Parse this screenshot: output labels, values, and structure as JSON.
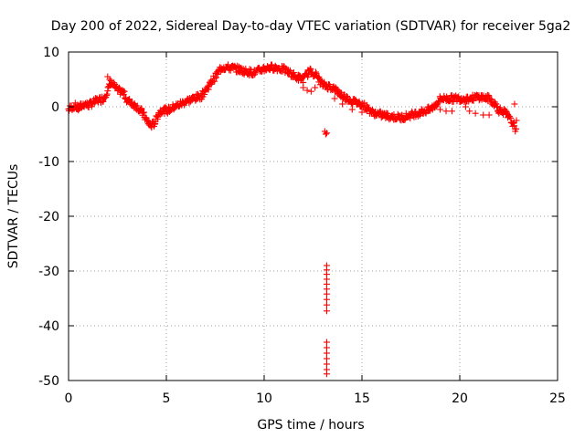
{
  "chart_data": {
    "type": "scatter",
    "title": "Day 200 of 2022, Sidereal Day-to-day VTEC variation (SDTVAR) for receiver 5ga2",
    "xlabel": "GPS time / hours",
    "ylabel": "SDTVAR / TECUs",
    "xlim": [
      0,
      25
    ],
    "ylim": [
      -50,
      10
    ],
    "xticks": [
      0,
      5,
      10,
      15,
      20,
      25
    ],
    "yticks": [
      10,
      0,
      -10,
      -20,
      -30,
      -40,
      -50
    ],
    "xtick_labels": [
      "0",
      "5",
      "10",
      "15",
      "20",
      "25"
    ],
    "ytick_labels": [
      "10",
      "0",
      "-10",
      "-20",
      "-30",
      "-40",
      "-50"
    ],
    "grid": true,
    "marker": "plus",
    "color": "#ff0000",
    "series": [
      {
        "name": "SDTVAR",
        "trend": [
          [
            0.0,
            -0.5
          ],
          [
            0.3,
            0.2
          ],
          [
            0.5,
            -0.3
          ],
          [
            0.8,
            0.5
          ],
          [
            1.0,
            0.3
          ],
          [
            1.3,
            0.8
          ],
          [
            1.5,
            1.2
          ],
          [
            1.8,
            1.5
          ],
          [
            2.0,
            3.0
          ],
          [
            2.2,
            4.5
          ],
          [
            2.5,
            3.0
          ],
          [
            2.8,
            2.6
          ],
          [
            3.0,
            1.2
          ],
          [
            3.3,
            0.5
          ],
          [
            3.5,
            0.0
          ],
          [
            3.8,
            -1.2
          ],
          [
            4.0,
            -2.5
          ],
          [
            4.2,
            -3.5
          ],
          [
            4.4,
            -3.0
          ],
          [
            4.6,
            -1.2
          ],
          [
            4.8,
            -0.5
          ],
          [
            5.0,
            -0.8
          ],
          [
            5.3,
            -0.2
          ],
          [
            5.6,
            0.3
          ],
          [
            6.0,
            1.0
          ],
          [
            6.4,
            1.5
          ],
          [
            6.8,
            2.0
          ],
          [
            7.0,
            3.0
          ],
          [
            7.3,
            4.5
          ],
          [
            7.6,
            6.0
          ],
          [
            7.8,
            7.2
          ],
          [
            8.0,
            7.2
          ],
          [
            8.5,
            7.0
          ],
          [
            9.0,
            6.5
          ],
          [
            9.5,
            6.2
          ],
          [
            10.0,
            7.0
          ],
          [
            10.5,
            7.2
          ],
          [
            11.0,
            6.8
          ],
          [
            11.3,
            6.2
          ],
          [
            11.6,
            5.5
          ],
          [
            12.0,
            5.0
          ],
          [
            12.3,
            6.5
          ],
          [
            12.6,
            6.0
          ],
          [
            13.0,
            4.0
          ],
          [
            13.5,
            3.5
          ],
          [
            14.0,
            2.0
          ],
          [
            14.5,
            1.0
          ],
          [
            15.0,
            0.5
          ],
          [
            15.5,
            -1.0
          ],
          [
            16.0,
            -1.5
          ],
          [
            16.5,
            -1.8
          ],
          [
            17.0,
            -2.0
          ],
          [
            17.5,
            -1.5
          ],
          [
            18.0,
            -1.0
          ],
          [
            18.5,
            -0.5
          ],
          [
            18.8,
            0.5
          ],
          [
            19.0,
            1.5
          ],
          [
            19.5,
            1.5
          ],
          [
            20.0,
            1.5
          ],
          [
            20.5,
            1.5
          ],
          [
            21.0,
            1.8
          ],
          [
            21.5,
            1.5
          ],
          [
            21.8,
            0.5
          ],
          [
            22.0,
            -0.5
          ],
          [
            22.3,
            -1.0
          ],
          [
            22.5,
            -2.0
          ],
          [
            22.8,
            -3.5
          ],
          [
            22.9,
            -5.0
          ]
        ],
        "scatter_band": 1.2,
        "extra_points": [
          [
            12.0,
            3.5
          ],
          [
            12.2,
            3.0
          ],
          [
            12.4,
            2.8
          ],
          [
            12.6,
            3.5
          ],
          [
            13.0,
            3.8
          ],
          [
            13.6,
            1.5
          ],
          [
            14.0,
            0.5
          ],
          [
            14.5,
            -0.5
          ],
          [
            15.0,
            -1.0
          ],
          [
            19.0,
            -0.5
          ],
          [
            19.3,
            -0.8
          ],
          [
            19.6,
            -0.8
          ],
          [
            20.3,
            0.0
          ],
          [
            20.5,
            -0.8
          ],
          [
            20.8,
            -1.2
          ],
          [
            21.2,
            -1.5
          ],
          [
            21.5,
            -1.5
          ],
          [
            22.0,
            -1.2
          ],
          [
            22.8,
            0.5
          ],
          [
            22.9,
            -2.5
          ],
          [
            2.0,
            5.5
          ],
          [
            2.1,
            5.0
          ],
          [
            13.1,
            -4.5
          ],
          [
            13.15,
            -5.0
          ],
          [
            13.2,
            -4.8
          ],
          [
            13.2,
            -29.0
          ],
          [
            13.2,
            -29.8
          ],
          [
            13.2,
            -30.6
          ],
          [
            13.2,
            -31.5
          ],
          [
            13.2,
            -32.4
          ],
          [
            13.2,
            -33.3
          ],
          [
            13.2,
            -34.2
          ],
          [
            13.2,
            -35.2
          ],
          [
            13.2,
            -36.2
          ],
          [
            13.2,
            -37.3
          ],
          [
            13.2,
            -43.0
          ],
          [
            13.2,
            -44.0
          ],
          [
            13.2,
            -45.0
          ],
          [
            13.2,
            -46.0
          ],
          [
            13.2,
            -47.0
          ],
          [
            13.2,
            -48.0
          ],
          [
            13.2,
            -48.8
          ]
        ]
      }
    ]
  }
}
